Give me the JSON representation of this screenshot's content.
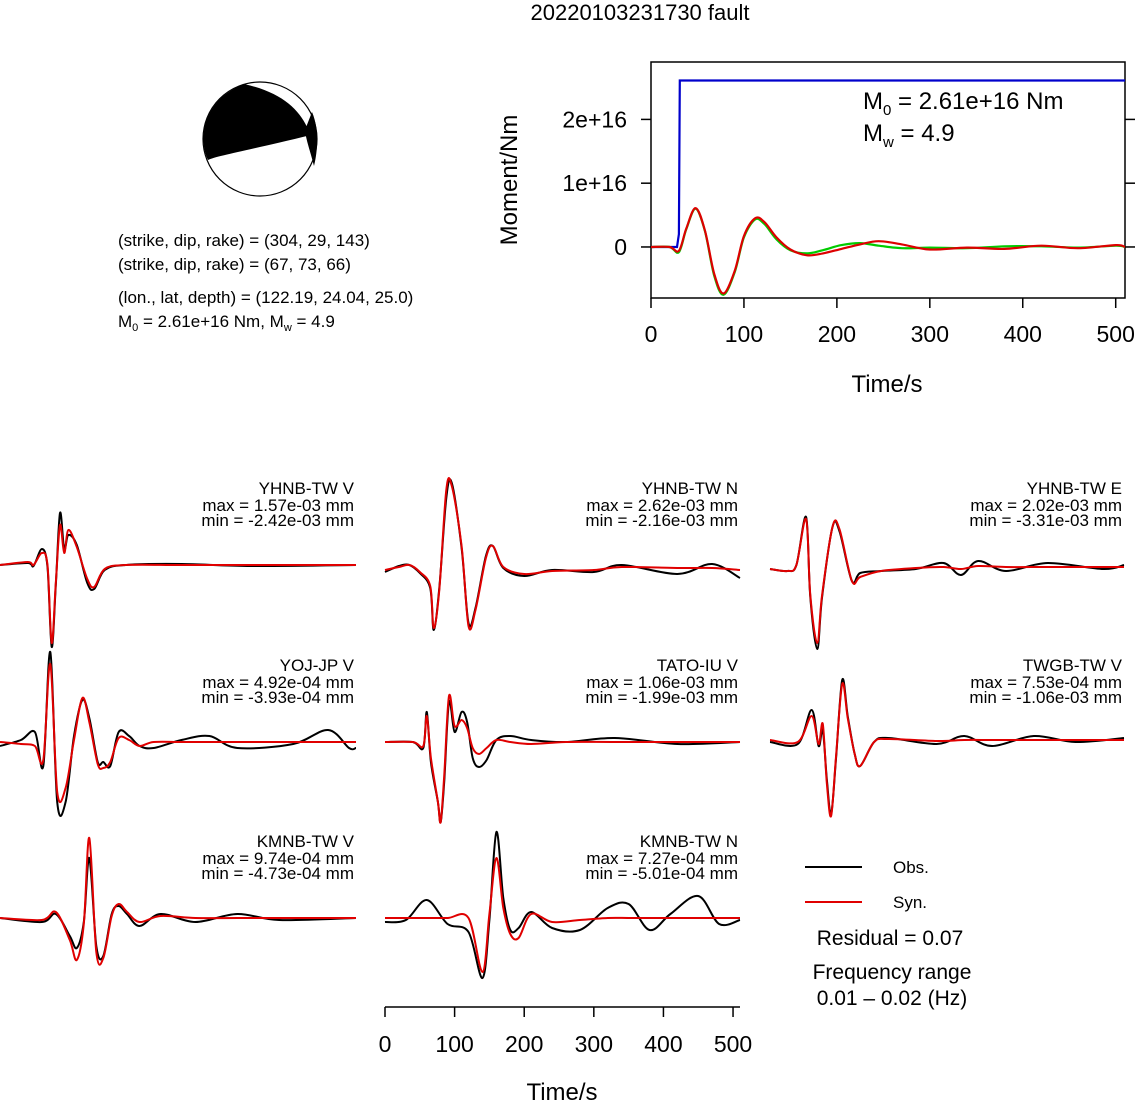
{
  "title": "20220103231730 fault",
  "focal_mechanism": {
    "planes": [
      "(strike, dip, rake) = (304, 29, 143)",
      "(strike, dip, rake) = (67, 73, 66)"
    ],
    "location": "(lon., lat, depth) = (122.19, 24.04, 25.0)",
    "magnitude_prefix": "M",
    "magnitude_sub": "0",
    "magnitude_rest": " = 2.61e+16 Nm, M",
    "magnitude_sub2": "w",
    "magnitude_end": " = 4.9"
  },
  "moment_plot": {
    "ylabel": "Moment/Nm",
    "xlabel": "Time/s",
    "yticks": [
      "0",
      "1e+16",
      "2e+16"
    ],
    "xticks": [
      "0",
      "100",
      "200",
      "300",
      "400",
      "500"
    ],
    "m0_prefix": "M",
    "m0_sub": "0",
    "m0_text": " = 2.61e+16 Nm",
    "mw_prefix": "M",
    "mw_sub": "w",
    "mw_text": " = 4.9",
    "colors": {
      "cumulative": "#0000cc",
      "obs_rate": "#00cc00",
      "syn_rate": "#dd0000"
    }
  },
  "waveforms": {
    "xlabel": "Time/s",
    "xticks": [
      "0",
      "100",
      "200",
      "300",
      "400",
      "500"
    ],
    "obs_color": "#000000",
    "syn_color": "#e00000"
  },
  "legend": {
    "obs": "Obs.",
    "syn": "Syn.",
    "residual": "Residual = 0.07",
    "freq_title": "Frequency range",
    "freq_value": "0.01 – 0.02 (Hz)"
  },
  "chart_data": [
    {
      "type": "line",
      "ylabel": "Moment/Nm",
      "xlabel": "Time/s",
      "xlim": [
        0,
        510
      ],
      "ylim": [
        -8000000000000000.0,
        2.9e+16
      ],
      "series": [
        {
          "values_t": [
            0,
            28,
            30,
            31,
            510
          ],
          "values": [
            0,
            0,
            2000000000000000.0,
            2.61e+16,
            2.61e+16
          ]
        },
        {
          "values_t": [
            0,
            20,
            30,
            38,
            48,
            58,
            68,
            78,
            90,
            100,
            112,
            122,
            135,
            150,
            168,
            185,
            205,
            225,
            245,
            270,
            300,
            340,
            380,
            420,
            460,
            500,
            510
          ],
          "values": [
            0,
            0,
            -800000000000000.0,
            2800000000000000.0,
            6000000000000000.0,
            2500000000000000.0,
            -4500000000000000.0,
            -7500000000000000.0,
            -4000000000000000.0,
            1500000000000000.0,
            4300000000000000.0,
            3600000000000000.0,
            1200000000000000.0,
            -500000000000000.0,
            -1000000000000000.0,
            -500000000000000.0,
            300000000000000.0,
            600000000000000.0,
            200000000000000.0,
            -200000000000000.0,
            -100000000000000.0,
            -200000000000000.0,
            100000000000000.0,
            100000000000000.0,
            -100000000000000.0,
            200000000000000.0,
            0
          ]
        },
        {
          "values_t": [
            0,
            20,
            30,
            38,
            48,
            58,
            68,
            78,
            90,
            100,
            112,
            122,
            135,
            150,
            168,
            185,
            205,
            225,
            245,
            270,
            300,
            340,
            380,
            420,
            460,
            500,
            510
          ],
          "values": [
            0,
            0,
            -600000000000000.0,
            2900000000000000.0,
            6100000000000000.0,
            2600000000000000.0,
            -4200000000000000.0,
            -7300000000000000.0,
            -3800000000000000.0,
            1700000000000000.0,
            4500000000000000.0,
            3900000000000000.0,
            1500000000000000.0,
            -400000000000000.0,
            -1300000000000000.0,
            -1000000000000000.0,
            -300000000000000.0,
            400000000000000.0,
            900000000000000.0,
            400000000000000.0,
            -400000000000000.0,
            -100000000000000.0,
            -300000000000000.0,
            200000000000000.0,
            -200000000000000.0,
            300000000000000.0,
            0
          ]
        }
      ]
    },
    {
      "type": "line",
      "xlabel": "Time/s",
      "xlim": [
        0,
        510
      ],
      "panels": [
        {
          "station": "YHNB-TW V",
          "max": "max = 1.57e-03 mm",
          "min": "min = -2.42e-03 mm"
        },
        {
          "station": "YHNB-TW N",
          "max": "max = 2.62e-03 mm",
          "min": "min = -2.16e-03 mm"
        },
        {
          "station": "YHNB-TW E",
          "max": "max = 2.02e-03 mm",
          "min": "min = -3.31e-03 mm"
        },
        {
          "station": "YOJ-JP V",
          "max": "max = 4.92e-04 mm",
          "min": "min = -3.93e-04 mm"
        },
        {
          "station": "TATO-IU V",
          "max": "max = 1.06e-03 mm",
          "min": "min = -1.99e-03 mm"
        },
        {
          "station": "TWGB-TW V",
          "max": "max = 7.53e-04 mm",
          "min": "min = -1.06e-03 mm"
        },
        {
          "station": "KMNB-TW V",
          "max": "max = 9.74e-04 mm",
          "min": "min = -4.73e-04 mm"
        },
        {
          "station": "KMNB-TW N",
          "max": "max = 7.27e-04 mm",
          "min": "min = -5.01e-04 mm"
        }
      ]
    }
  ]
}
